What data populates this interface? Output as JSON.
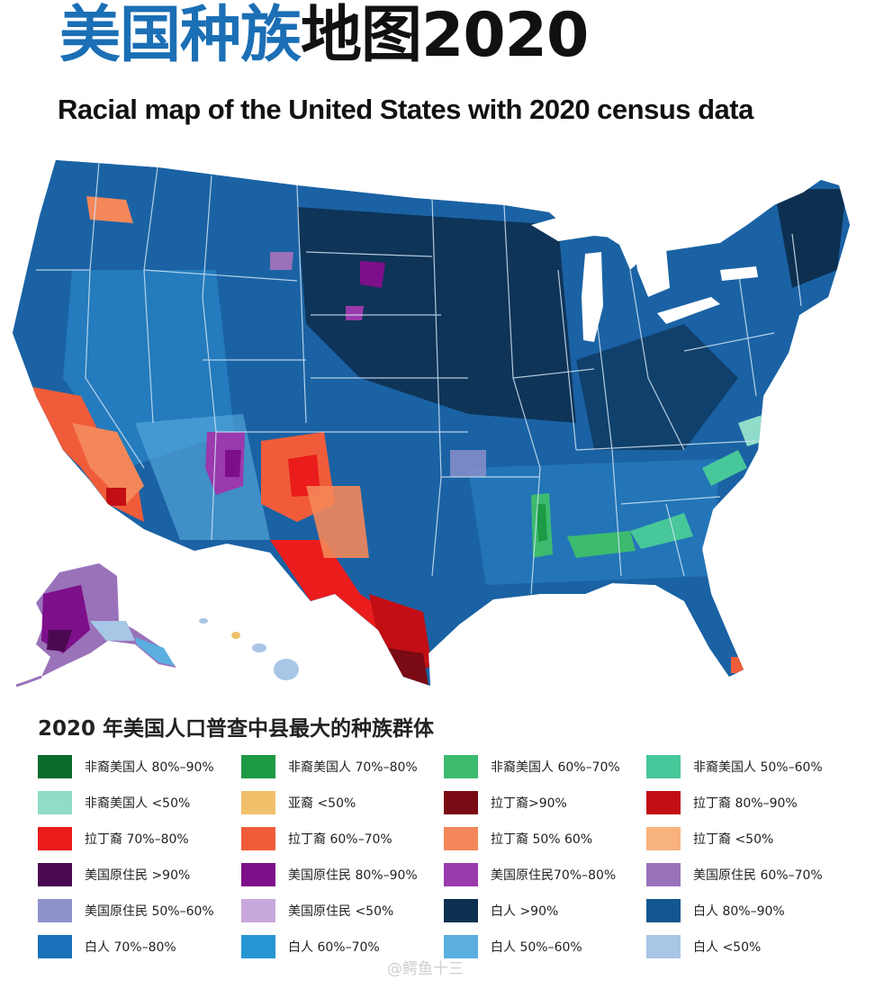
{
  "title": {
    "cn_blue": "美国种族",
    "cn_black": "地图2020"
  },
  "subtitle": "Racial map of the United States with 2020 census data",
  "legend": {
    "title": "2020 年美国人口普查中县最大的种族群体",
    "items": [
      {
        "label": "非裔美国人 80%–90%",
        "color": "#0a6a2c"
      },
      {
        "label": "非裔美国人 70%–80%",
        "color": "#1d9a44"
      },
      {
        "label": "非裔美国人 60%–70%",
        "color": "#3cbb6f"
      },
      {
        "label": "非裔美国人 50%–60%",
        "color": "#48c79a"
      },
      {
        "label": "非裔美国人 <50%",
        "color": "#8fdcc8"
      },
      {
        "label": "亚裔 <50%",
        "color": "#f1c06a"
      },
      {
        "label": "拉丁裔>90%",
        "color": "#7a0a14"
      },
      {
        "label": "拉丁裔 80%–90%",
        "color": "#c20e14"
      },
      {
        "label": "拉丁裔 70%–80%",
        "color": "#ea1c1c"
      },
      {
        "label": "拉丁裔 60%–70%",
        "color": "#f05c3a"
      },
      {
        "label": "拉丁裔 50% 60%",
        "color": "#f4875a"
      },
      {
        "label": "拉丁裔 <50%",
        "color": "#f8b27c"
      },
      {
        "label": "美国原住民 >90%",
        "color": "#4a0a52"
      },
      {
        "label": "美国原住民 80%–90%",
        "color": "#7e0f8a"
      },
      {
        "label": "美国原住民70%–80%",
        "color": "#9a3aac"
      },
      {
        "label": "美国原住民 60%–70%",
        "color": "#9a72ba"
      },
      {
        "label": "美国原住民 50%–60%",
        "color": "#8f92cc"
      },
      {
        "label": "美国原住民 <50%",
        "color": "#c8a7dc"
      },
      {
        "label": "白人 >90%",
        "color": "#0d3050"
      },
      {
        "label": "白人 80%–90%",
        "color": "#12578f"
      },
      {
        "label": "白人 70%–80%",
        "color": "#1a72ba"
      },
      {
        "label": "白人 60%–70%",
        "color": "#2596d2"
      },
      {
        "label": "白人 50%–60%",
        "color": "#5aaee0"
      },
      {
        "label": "白人 <50%",
        "color": "#a8c6e6"
      }
    ]
  },
  "watermark": "@鳄鱼十三",
  "map_colors": {
    "base": "#1a62a4",
    "dark": "#0d3050",
    "mid": "#1a72ba",
    "light": "#4fa2da",
    "pale": "#a8c6e6"
  }
}
